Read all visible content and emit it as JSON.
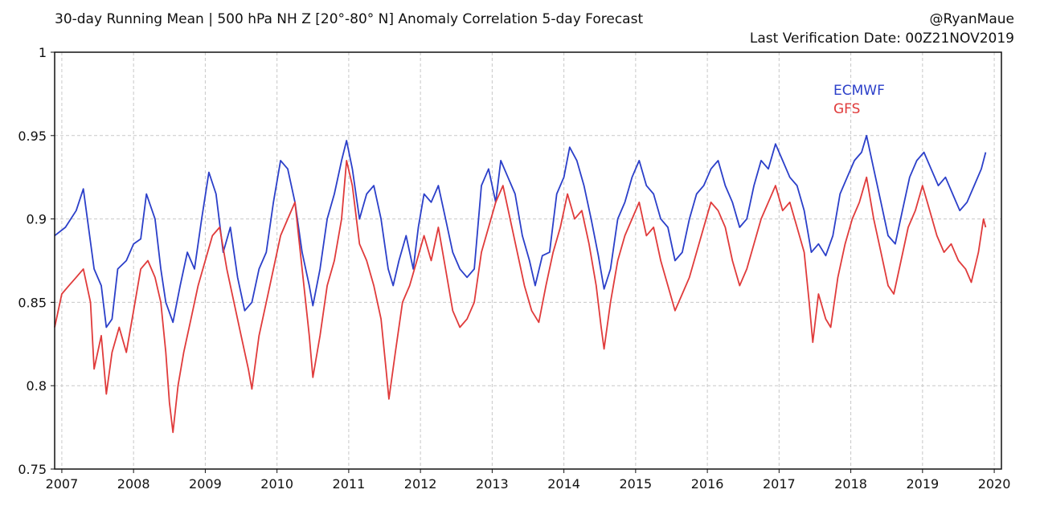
{
  "header": {
    "title": "30-day Running Mean | 500 hPa NH Z [20°-80° N] Anomaly Correlation 5-day Forecast",
    "handle": "@RyanMaue",
    "verification": "Last Verification Date: 00Z21NOV2019"
  },
  "chart_data": {
    "type": "line",
    "title": "30-day Running Mean | 500 hPa NH Z [20°-80° N] Anomaly Correlation 5-day Forecast",
    "xlabel": "",
    "ylabel": "",
    "xlim": [
      2006.9,
      2020.1
    ],
    "ylim": [
      0.75,
      1.0
    ],
    "grid": true,
    "legend_position": "top-right",
    "x_ticks": [
      2007,
      2008,
      2009,
      2010,
      2011,
      2012,
      2013,
      2014,
      2015,
      2016,
      2017,
      2018,
      2019,
      2020
    ],
    "x_tick_labels": [
      "2007",
      "2008",
      "2009",
      "2010",
      "2011",
      "2012",
      "2013",
      "2014",
      "2015",
      "2016",
      "2017",
      "2018",
      "2019",
      "2020"
    ],
    "y_ticks": [
      0.75,
      0.8,
      0.85,
      0.9,
      0.95,
      1.0
    ],
    "y_tick_labels": [
      "0.75",
      "0.8",
      "0.85",
      "0.9",
      "0.95",
      "1"
    ],
    "series": [
      {
        "name": "ECMWF",
        "color": "#2b3fc9",
        "points": [
          [
            2006.9,
            0.89
          ],
          [
            2007.05,
            0.895
          ],
          [
            2007.2,
            0.905
          ],
          [
            2007.3,
            0.918
          ],
          [
            2007.45,
            0.87
          ],
          [
            2007.55,
            0.86
          ],
          [
            2007.62,
            0.835
          ],
          [
            2007.7,
            0.84
          ],
          [
            2007.78,
            0.87
          ],
          [
            2007.9,
            0.875
          ],
          [
            2008.0,
            0.885
          ],
          [
            2008.1,
            0.888
          ],
          [
            2008.18,
            0.915
          ],
          [
            2008.3,
            0.9
          ],
          [
            2008.38,
            0.87
          ],
          [
            2008.45,
            0.85
          ],
          [
            2008.55,
            0.838
          ],
          [
            2008.65,
            0.86
          ],
          [
            2008.75,
            0.88
          ],
          [
            2008.85,
            0.87
          ],
          [
            2008.95,
            0.9
          ],
          [
            2009.05,
            0.928
          ],
          [
            2009.15,
            0.915
          ],
          [
            2009.25,
            0.88
          ],
          [
            2009.35,
            0.895
          ],
          [
            2009.45,
            0.865
          ],
          [
            2009.55,
            0.845
          ],
          [
            2009.65,
            0.85
          ],
          [
            2009.75,
            0.87
          ],
          [
            2009.85,
            0.88
          ],
          [
            2009.95,
            0.91
          ],
          [
            2010.05,
            0.935
          ],
          [
            2010.15,
            0.93
          ],
          [
            2010.25,
            0.91
          ],
          [
            2010.35,
            0.88
          ],
          [
            2010.45,
            0.86
          ],
          [
            2010.5,
            0.848
          ],
          [
            2010.6,
            0.87
          ],
          [
            2010.7,
            0.9
          ],
          [
            2010.8,
            0.915
          ],
          [
            2010.9,
            0.935
          ],
          [
            2010.97,
            0.947
          ],
          [
            2011.05,
            0.93
          ],
          [
            2011.15,
            0.9
          ],
          [
            2011.25,
            0.915
          ],
          [
            2011.35,
            0.92
          ],
          [
            2011.45,
            0.9
          ],
          [
            2011.55,
            0.87
          ],
          [
            2011.62,
            0.86
          ],
          [
            2011.7,
            0.875
          ],
          [
            2011.8,
            0.89
          ],
          [
            2011.9,
            0.87
          ],
          [
            2011.97,
            0.895
          ],
          [
            2012.05,
            0.915
          ],
          [
            2012.15,
            0.91
          ],
          [
            2012.25,
            0.92
          ],
          [
            2012.35,
            0.9
          ],
          [
            2012.45,
            0.88
          ],
          [
            2012.55,
            0.87
          ],
          [
            2012.65,
            0.865
          ],
          [
            2012.75,
            0.87
          ],
          [
            2012.85,
            0.92
          ],
          [
            2012.95,
            0.93
          ],
          [
            2013.05,
            0.91
          ],
          [
            2013.12,
            0.935
          ],
          [
            2013.22,
            0.925
          ],
          [
            2013.32,
            0.915
          ],
          [
            2013.42,
            0.89
          ],
          [
            2013.52,
            0.875
          ],
          [
            2013.6,
            0.86
          ],
          [
            2013.7,
            0.878
          ],
          [
            2013.8,
            0.88
          ],
          [
            2013.9,
            0.915
          ],
          [
            2014.0,
            0.925
          ],
          [
            2014.08,
            0.943
          ],
          [
            2014.18,
            0.935
          ],
          [
            2014.28,
            0.92
          ],
          [
            2014.38,
            0.9
          ],
          [
            2014.48,
            0.878
          ],
          [
            2014.56,
            0.858
          ],
          [
            2014.65,
            0.87
          ],
          [
            2014.75,
            0.9
          ],
          [
            2014.85,
            0.91
          ],
          [
            2014.95,
            0.925
          ],
          [
            2015.05,
            0.935
          ],
          [
            2015.15,
            0.92
          ],
          [
            2015.25,
            0.915
          ],
          [
            2015.35,
            0.9
          ],
          [
            2015.45,
            0.895
          ],
          [
            2015.55,
            0.875
          ],
          [
            2015.65,
            0.88
          ],
          [
            2015.75,
            0.9
          ],
          [
            2015.85,
            0.915
          ],
          [
            2015.95,
            0.92
          ],
          [
            2016.05,
            0.93
          ],
          [
            2016.15,
            0.935
          ],
          [
            2016.25,
            0.92
          ],
          [
            2016.35,
            0.91
          ],
          [
            2016.45,
            0.895
          ],
          [
            2016.55,
            0.9
          ],
          [
            2016.65,
            0.92
          ],
          [
            2016.75,
            0.935
          ],
          [
            2016.85,
            0.93
          ],
          [
            2016.95,
            0.945
          ],
          [
            2017.05,
            0.935
          ],
          [
            2017.15,
            0.925
          ],
          [
            2017.25,
            0.92
          ],
          [
            2017.35,
            0.905
          ],
          [
            2017.45,
            0.88
          ],
          [
            2017.55,
            0.885
          ],
          [
            2017.65,
            0.878
          ],
          [
            2017.75,
            0.89
          ],
          [
            2017.85,
            0.915
          ],
          [
            2017.95,
            0.925
          ],
          [
            2018.05,
            0.935
          ],
          [
            2018.15,
            0.94
          ],
          [
            2018.22,
            0.95
          ],
          [
            2018.32,
            0.93
          ],
          [
            2018.42,
            0.91
          ],
          [
            2018.52,
            0.89
          ],
          [
            2018.62,
            0.885
          ],
          [
            2018.72,
            0.905
          ],
          [
            2018.82,
            0.925
          ],
          [
            2018.92,
            0.935
          ],
          [
            2019.02,
            0.94
          ],
          [
            2019.12,
            0.93
          ],
          [
            2019.22,
            0.92
          ],
          [
            2019.32,
            0.925
          ],
          [
            2019.42,
            0.915
          ],
          [
            2019.52,
            0.905
          ],
          [
            2019.62,
            0.91
          ],
          [
            2019.72,
            0.92
          ],
          [
            2019.82,
            0.93
          ],
          [
            2019.88,
            0.94
          ]
        ]
      },
      {
        "name": "GFS",
        "color": "#e03b3b",
        "points": [
          [
            2006.9,
            0.835
          ],
          [
            2007.0,
            0.855
          ],
          [
            2007.1,
            0.86
          ],
          [
            2007.2,
            0.865
          ],
          [
            2007.3,
            0.87
          ],
          [
            2007.4,
            0.85
          ],
          [
            2007.45,
            0.81
          ],
          [
            2007.55,
            0.83
          ],
          [
            2007.62,
            0.795
          ],
          [
            2007.7,
            0.82
          ],
          [
            2007.8,
            0.835
          ],
          [
            2007.9,
            0.82
          ],
          [
            2008.0,
            0.845
          ],
          [
            2008.1,
            0.87
          ],
          [
            2008.2,
            0.875
          ],
          [
            2008.3,
            0.865
          ],
          [
            2008.38,
            0.85
          ],
          [
            2008.45,
            0.82
          ],
          [
            2008.5,
            0.79
          ],
          [
            2008.55,
            0.772
          ],
          [
            2008.62,
            0.8
          ],
          [
            2008.7,
            0.82
          ],
          [
            2008.8,
            0.84
          ],
          [
            2008.9,
            0.86
          ],
          [
            2009.0,
            0.875
          ],
          [
            2009.1,
            0.89
          ],
          [
            2009.2,
            0.895
          ],
          [
            2009.3,
            0.87
          ],
          [
            2009.4,
            0.85
          ],
          [
            2009.5,
            0.83
          ],
          [
            2009.6,
            0.81
          ],
          [
            2009.65,
            0.798
          ],
          [
            2009.75,
            0.83
          ],
          [
            2009.85,
            0.85
          ],
          [
            2009.95,
            0.87
          ],
          [
            2010.05,
            0.89
          ],
          [
            2010.15,
            0.9
          ],
          [
            2010.25,
            0.91
          ],
          [
            2010.35,
            0.87
          ],
          [
            2010.45,
            0.83
          ],
          [
            2010.5,
            0.805
          ],
          [
            2010.6,
            0.83
          ],
          [
            2010.7,
            0.86
          ],
          [
            2010.8,
            0.875
          ],
          [
            2010.9,
            0.9
          ],
          [
            2010.97,
            0.935
          ],
          [
            2011.05,
            0.92
          ],
          [
            2011.15,
            0.885
          ],
          [
            2011.25,
            0.875
          ],
          [
            2011.35,
            0.86
          ],
          [
            2011.45,
            0.84
          ],
          [
            2011.52,
            0.81
          ],
          [
            2011.56,
            0.792
          ],
          [
            2011.65,
            0.82
          ],
          [
            2011.75,
            0.85
          ],
          [
            2011.85,
            0.86
          ],
          [
            2011.95,
            0.875
          ],
          [
            2012.05,
            0.89
          ],
          [
            2012.15,
            0.875
          ],
          [
            2012.25,
            0.895
          ],
          [
            2012.35,
            0.87
          ],
          [
            2012.45,
            0.845
          ],
          [
            2012.55,
            0.835
          ],
          [
            2012.65,
            0.84
          ],
          [
            2012.75,
            0.85
          ],
          [
            2012.85,
            0.88
          ],
          [
            2012.95,
            0.895
          ],
          [
            2013.05,
            0.91
          ],
          [
            2013.15,
            0.92
          ],
          [
            2013.25,
            0.9
          ],
          [
            2013.35,
            0.88
          ],
          [
            2013.45,
            0.86
          ],
          [
            2013.55,
            0.845
          ],
          [
            2013.65,
            0.838
          ],
          [
            2013.75,
            0.86
          ],
          [
            2013.85,
            0.88
          ],
          [
            2013.95,
            0.895
          ],
          [
            2014.05,
            0.915
          ],
          [
            2014.15,
            0.9
          ],
          [
            2014.25,
            0.905
          ],
          [
            2014.35,
            0.885
          ],
          [
            2014.45,
            0.86
          ],
          [
            2014.52,
            0.835
          ],
          [
            2014.56,
            0.822
          ],
          [
            2014.65,
            0.85
          ],
          [
            2014.75,
            0.875
          ],
          [
            2014.85,
            0.89
          ],
          [
            2014.95,
            0.9
          ],
          [
            2015.05,
            0.91
          ],
          [
            2015.15,
            0.89
          ],
          [
            2015.25,
            0.895
          ],
          [
            2015.35,
            0.875
          ],
          [
            2015.45,
            0.86
          ],
          [
            2015.55,
            0.845
          ],
          [
            2015.65,
            0.855
          ],
          [
            2015.75,
            0.865
          ],
          [
            2015.85,
            0.88
          ],
          [
            2015.95,
            0.895
          ],
          [
            2016.05,
            0.91
          ],
          [
            2016.15,
            0.905
          ],
          [
            2016.25,
            0.895
          ],
          [
            2016.35,
            0.875
          ],
          [
            2016.45,
            0.86
          ],
          [
            2016.55,
            0.87
          ],
          [
            2016.65,
            0.885
          ],
          [
            2016.75,
            0.9
          ],
          [
            2016.85,
            0.91
          ],
          [
            2016.95,
            0.92
          ],
          [
            2017.05,
            0.905
          ],
          [
            2017.15,
            0.91
          ],
          [
            2017.25,
            0.895
          ],
          [
            2017.35,
            0.88
          ],
          [
            2017.42,
            0.85
          ],
          [
            2017.47,
            0.826
          ],
          [
            2017.55,
            0.855
          ],
          [
            2017.65,
            0.84
          ],
          [
            2017.72,
            0.835
          ],
          [
            2017.82,
            0.865
          ],
          [
            2017.92,
            0.885
          ],
          [
            2018.02,
            0.9
          ],
          [
            2018.12,
            0.91
          ],
          [
            2018.22,
            0.925
          ],
          [
            2018.32,
            0.9
          ],
          [
            2018.42,
            0.88
          ],
          [
            2018.52,
            0.86
          ],
          [
            2018.6,
            0.855
          ],
          [
            2018.7,
            0.875
          ],
          [
            2018.8,
            0.895
          ],
          [
            2018.9,
            0.905
          ],
          [
            2019.0,
            0.92
          ],
          [
            2019.1,
            0.905
          ],
          [
            2019.2,
            0.89
          ],
          [
            2019.3,
            0.88
          ],
          [
            2019.4,
            0.885
          ],
          [
            2019.5,
            0.875
          ],
          [
            2019.6,
            0.87
          ],
          [
            2019.68,
            0.862
          ],
          [
            2019.78,
            0.88
          ],
          [
            2019.85,
            0.9
          ],
          [
            2019.88,
            0.895
          ]
        ]
      }
    ]
  }
}
